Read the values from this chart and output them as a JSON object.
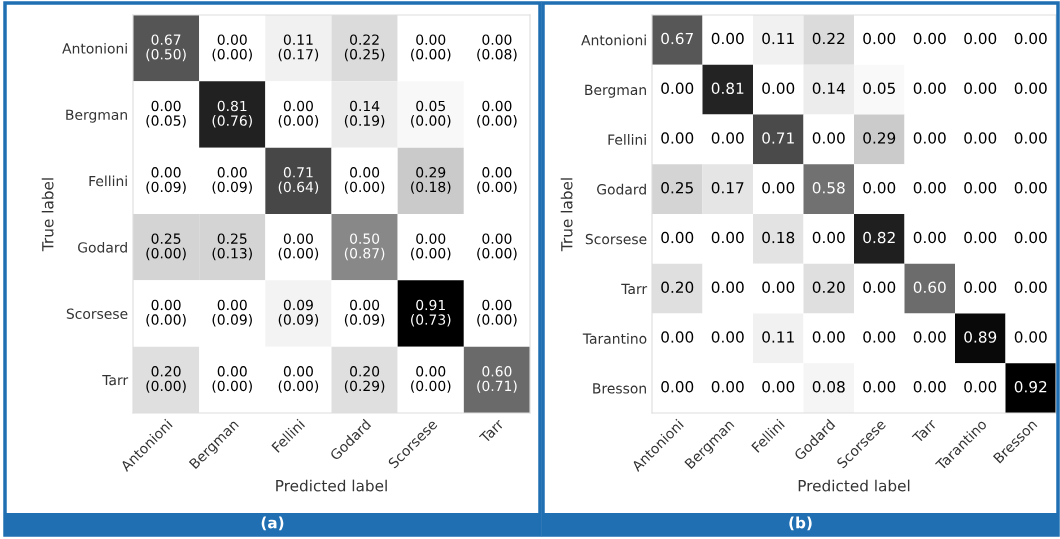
{
  "chart_data": [
    {
      "type": "heatmap",
      "xlabel": "Predicted label",
      "ylabel": "True label",
      "annotations": [
        "(a)",
        "(0.50)",
        "(0.00)",
        "(0.17)",
        "(0.25)",
        "(0.00)",
        "(0.08)",
        "(0.05)",
        "(0.76)",
        "(0.00)",
        "(0.19)",
        "(0.00)",
        "(0.00)",
        "(0.09)",
        "(0.09)",
        "(0.64)",
        "(0.00)",
        "(0.18)",
        "(0.00)",
        "(0.00)",
        "(0.13)",
        "(0.00)",
        "(0.87)",
        "(0.00)",
        "(0.00)",
        "(0.00)",
        "(0.09)",
        "(0.09)",
        "(0.09)",
        "(0.73)",
        "(0.00)",
        "(0.00)",
        "(0.00)",
        "(0.00)",
        "(0.29)",
        "(0.00)",
        "(0.71)"
      ],
      "categories": [
        "Antonioni",
        "Bergman",
        "Fellini",
        "Godard",
        "Scorsese",
        "Tarr"
      ],
      "y_categories": [
        "Antonioni",
        "Bergman",
        "Fellini",
        "Godard",
        "Scorsese",
        "Tarr"
      ],
      "cells": [
        [
          0.67,
          0.0,
          0.11,
          0.22,
          0.0,
          0.0
        ],
        [
          0.0,
          0.81,
          0.0,
          0.14,
          0.05,
          0.0
        ],
        [
          0.0,
          0.0,
          0.71,
          0.0,
          0.29,
          0.0
        ],
        [
          0.25,
          0.25,
          0.0,
          0.5,
          0.0,
          0.0
        ],
        [
          0.0,
          0.0,
          0.09,
          0.0,
          0.91,
          0.0
        ],
        [
          0.2,
          0.0,
          0.0,
          0.2,
          0.0,
          0.6
        ]
      ],
      "cell_labels": [
        [
          "0.67",
          "0.00",
          "0.11",
          "0.22",
          "0.00",
          "0.00"
        ],
        [
          "0.00",
          "0.81",
          "0.00",
          "0.14",
          "0.05",
          "0.00"
        ],
        [
          "0.00",
          "0.00",
          "0.71",
          "0.00",
          "0.29",
          "0.00"
        ],
        [
          "0.25",
          "0.25",
          "0.00",
          "0.50",
          "0.00",
          "0.00"
        ],
        [
          "0.00",
          "0.00",
          "0.09",
          "0.00",
          "0.91",
          "0.00"
        ],
        [
          "0.20",
          "0.00",
          "0.00",
          "0.20",
          "0.00",
          "0.60"
        ]
      ]
    },
    {
      "type": "heatmap",
      "xlabel": "Predicted label",
      "ylabel": "True label",
      "annotations": [
        "(b)"
      ],
      "categories": [
        "Antonioni",
        "Bergman",
        "Fellini",
        "Godard",
        "Scorsese",
        "Tarr",
        "Tarantino",
        "Bresson"
      ],
      "y_categories": [
        "Antonioni",
        "Bergman",
        "Fellini",
        "Godard",
        "Scorsese",
        "Tarr",
        "Tarantino",
        "Bresson"
      ],
      "cells": [
        [
          0.67,
          0.0,
          0.11,
          0.22,
          0.0,
          0.0,
          0.0,
          0.0
        ],
        [
          0.0,
          0.81,
          0.0,
          0.14,
          0.05,
          0.0,
          0.0,
          0.0
        ],
        [
          0.0,
          0.0,
          0.71,
          0.0,
          0.29,
          0.0,
          0.0,
          0.0
        ],
        [
          0.25,
          0.17,
          0.0,
          0.58,
          0.0,
          0.0,
          0.0,
          0.0
        ],
        [
          0.0,
          0.0,
          0.18,
          0.0,
          0.82,
          0.0,
          0.0,
          0.0
        ],
        [
          0.2,
          0.0,
          0.0,
          0.2,
          0.0,
          0.6,
          0.0,
          0.0
        ],
        [
          0.0,
          0.0,
          0.11,
          0.0,
          0.0,
          0.0,
          0.89,
          0.0
        ],
        [
          0.0,
          0.0,
          0.0,
          0.08,
          0.0,
          0.0,
          0.0,
          0.92
        ]
      ],
      "cell_labels": [
        [
          "0.67",
          "0.00",
          "0.11",
          "0.22",
          "0.00",
          "0.00",
          "0.00",
          "0.00"
        ],
        [
          "0.00",
          "0.81",
          "0.00",
          "0.14",
          "0.05",
          "0.00",
          "0.00",
          "0.00"
        ],
        [
          "0.00",
          "0.00",
          "0.71",
          "0.00",
          "0.29",
          "0.00",
          "0.00",
          "0.00"
        ],
        [
          "0.25",
          "0.17",
          "0.00",
          "0.58",
          "0.00",
          "0.00",
          "0.00",
          "0.00"
        ],
        [
          "0.00",
          "0.00",
          "0.18",
          "0.00",
          "0.82",
          "0.00",
          "0.00",
          "0.00"
        ],
        [
          "0.20",
          "0.00",
          "0.00",
          "0.20",
          "0.00",
          "0.60",
          "0.00",
          "0.00"
        ],
        [
          "0.00",
          "0.00",
          "0.11",
          "0.00",
          "0.00",
          "0.00",
          "0.89",
          "0.00"
        ],
        [
          "0.00",
          "0.00",
          "0.00",
          "0.08",
          "0.00",
          "0.00",
          "0.00",
          "0.92"
        ]
      ]
    }
  ]
}
